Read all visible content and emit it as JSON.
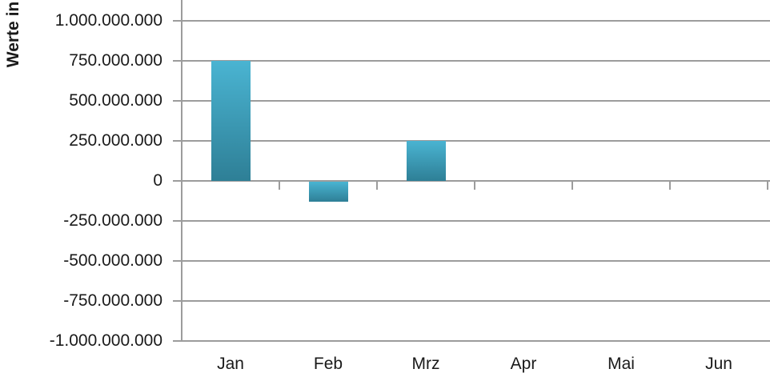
{
  "chart_data": {
    "type": "bar",
    "title": "",
    "xlabel": "",
    "ylabel": "Werte in",
    "categories": [
      "Jan",
      "Feb",
      "Mrz",
      "Apr",
      "Mai",
      "Jun"
    ],
    "values": [
      750000000,
      -130000000,
      250000000,
      0,
      0,
      0
    ],
    "ytick_values": [
      1000000000,
      750000000,
      500000000,
      250000000,
      0,
      -250000000,
      -500000000,
      -750000000,
      -1000000000
    ],
    "ytick_labels": [
      "1.000.000.000",
      "750.000.000",
      "500.000.000",
      "250.000.000",
      "0",
      "-250.000.000",
      "-500.000.000",
      "-750.000.000",
      "-1.000.000.000"
    ],
    "ylim": [
      -1000000000,
      1000000000
    ],
    "grid": true,
    "legend": false,
    "colors": {
      "bar_gradient_top": "#4AB4D2",
      "bar_gradient_bottom": "#2E7F96",
      "gridline": "#9C9C9C",
      "axis_line": "#9C9C9C",
      "text": "#1A1A1A",
      "background": "#FFFFFF"
    }
  }
}
